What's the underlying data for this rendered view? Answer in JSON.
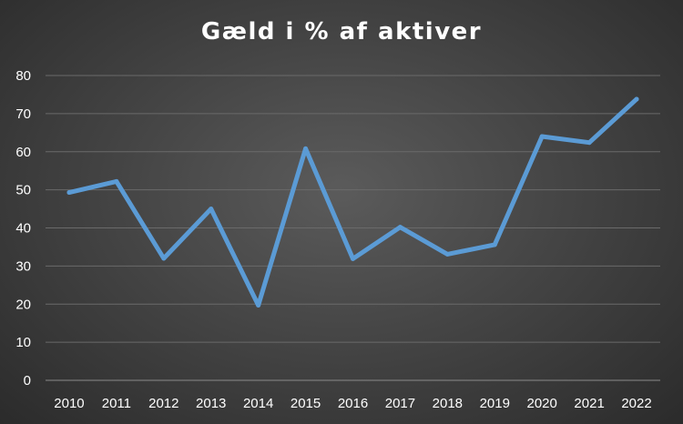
{
  "chart_data": {
    "type": "line",
    "title": "Gæld i % af aktiver",
    "xlabel": "",
    "ylabel": "",
    "categories": [
      "2010",
      "2011",
      "2012",
      "2013",
      "2014",
      "2015",
      "2016",
      "2017",
      "2018",
      "2019",
      "2020",
      "2021",
      "2022"
    ],
    "series": [
      {
        "values": [
          49.3,
          52.2,
          32.0,
          45.0,
          19.7,
          60.8,
          31.9,
          40.2,
          33.1,
          35.6,
          64.0,
          62.4,
          73.8
        ],
        "color": "#5b9bd5"
      }
    ],
    "ylim": [
      0,
      80
    ],
    "yticks": [
      0,
      10,
      20,
      30,
      40,
      50,
      60,
      70,
      80
    ],
    "grid": true,
    "legend": "none"
  }
}
